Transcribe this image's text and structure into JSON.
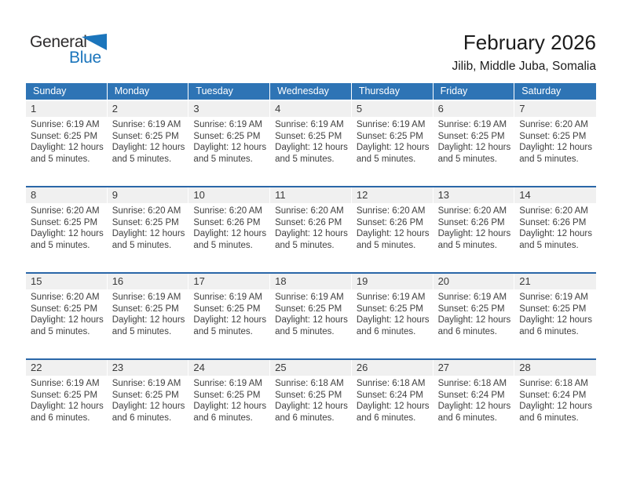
{
  "logo": {
    "part1": "General",
    "part2": "Blue",
    "triangle_icon": "blue-flag-triangle"
  },
  "header": {
    "title": "February 2026",
    "subtitle": "Jilib, Middle Juba, Somalia"
  },
  "colors": {
    "header_blue": "#2E74B5",
    "separator_blue": "#2A67A8",
    "band_gray": "#F0F0F0",
    "logo_blue": "#1B75BC",
    "text_dark": "#404040"
  },
  "calendar": {
    "weekday_headers": [
      "Sunday",
      "Monday",
      "Tuesday",
      "Wednesday",
      "Thursday",
      "Friday",
      "Saturday"
    ],
    "weeks": [
      {
        "days": [
          {
            "day": "1",
            "lines": [
              "Sunrise: 6:19 AM",
              "Sunset: 6:25 PM",
              "Daylight: 12 hours",
              "and 5 minutes."
            ]
          },
          {
            "day": "2",
            "lines": [
              "Sunrise: 6:19 AM",
              "Sunset: 6:25 PM",
              "Daylight: 12 hours",
              "and 5 minutes."
            ]
          },
          {
            "day": "3",
            "lines": [
              "Sunrise: 6:19 AM",
              "Sunset: 6:25 PM",
              "Daylight: 12 hours",
              "and 5 minutes."
            ]
          },
          {
            "day": "4",
            "lines": [
              "Sunrise: 6:19 AM",
              "Sunset: 6:25 PM",
              "Daylight: 12 hours",
              "and 5 minutes."
            ]
          },
          {
            "day": "5",
            "lines": [
              "Sunrise: 6:19 AM",
              "Sunset: 6:25 PM",
              "Daylight: 12 hours",
              "and 5 minutes."
            ]
          },
          {
            "day": "6",
            "lines": [
              "Sunrise: 6:19 AM",
              "Sunset: 6:25 PM",
              "Daylight: 12 hours",
              "and 5 minutes."
            ]
          },
          {
            "day": "7",
            "lines": [
              "Sunrise: 6:20 AM",
              "Sunset: 6:25 PM",
              "Daylight: 12 hours",
              "and 5 minutes."
            ]
          }
        ]
      },
      {
        "days": [
          {
            "day": "8",
            "lines": [
              "Sunrise: 6:20 AM",
              "Sunset: 6:25 PM",
              "Daylight: 12 hours",
              "and 5 minutes."
            ]
          },
          {
            "day": "9",
            "lines": [
              "Sunrise: 6:20 AM",
              "Sunset: 6:25 PM",
              "Daylight: 12 hours",
              "and 5 minutes."
            ]
          },
          {
            "day": "10",
            "lines": [
              "Sunrise: 6:20 AM",
              "Sunset: 6:26 PM",
              "Daylight: 12 hours",
              "and 5 minutes."
            ]
          },
          {
            "day": "11",
            "lines": [
              "Sunrise: 6:20 AM",
              "Sunset: 6:26 PM",
              "Daylight: 12 hours",
              "and 5 minutes."
            ]
          },
          {
            "day": "12",
            "lines": [
              "Sunrise: 6:20 AM",
              "Sunset: 6:26 PM",
              "Daylight: 12 hours",
              "and 5 minutes."
            ]
          },
          {
            "day": "13",
            "lines": [
              "Sunrise: 6:20 AM",
              "Sunset: 6:26 PM",
              "Daylight: 12 hours",
              "and 5 minutes."
            ]
          },
          {
            "day": "14",
            "lines": [
              "Sunrise: 6:20 AM",
              "Sunset: 6:26 PM",
              "Daylight: 12 hours",
              "and 5 minutes."
            ]
          }
        ]
      },
      {
        "days": [
          {
            "day": "15",
            "lines": [
              "Sunrise: 6:20 AM",
              "Sunset: 6:25 PM",
              "Daylight: 12 hours",
              "and 5 minutes."
            ]
          },
          {
            "day": "16",
            "lines": [
              "Sunrise: 6:19 AM",
              "Sunset: 6:25 PM",
              "Daylight: 12 hours",
              "and 5 minutes."
            ]
          },
          {
            "day": "17",
            "lines": [
              "Sunrise: 6:19 AM",
              "Sunset: 6:25 PM",
              "Daylight: 12 hours",
              "and 5 minutes."
            ]
          },
          {
            "day": "18",
            "lines": [
              "Sunrise: 6:19 AM",
              "Sunset: 6:25 PM",
              "Daylight: 12 hours",
              "and 5 minutes."
            ]
          },
          {
            "day": "19",
            "lines": [
              "Sunrise: 6:19 AM",
              "Sunset: 6:25 PM",
              "Daylight: 12 hours",
              "and 6 minutes."
            ]
          },
          {
            "day": "20",
            "lines": [
              "Sunrise: 6:19 AM",
              "Sunset: 6:25 PM",
              "Daylight: 12 hours",
              "and 6 minutes."
            ]
          },
          {
            "day": "21",
            "lines": [
              "Sunrise: 6:19 AM",
              "Sunset: 6:25 PM",
              "Daylight: 12 hours",
              "and 6 minutes."
            ]
          }
        ]
      },
      {
        "days": [
          {
            "day": "22",
            "lines": [
              "Sunrise: 6:19 AM",
              "Sunset: 6:25 PM",
              "Daylight: 12 hours",
              "and 6 minutes."
            ]
          },
          {
            "day": "23",
            "lines": [
              "Sunrise: 6:19 AM",
              "Sunset: 6:25 PM",
              "Daylight: 12 hours",
              "and 6 minutes."
            ]
          },
          {
            "day": "24",
            "lines": [
              "Sunrise: 6:19 AM",
              "Sunset: 6:25 PM",
              "Daylight: 12 hours",
              "and 6 minutes."
            ]
          },
          {
            "day": "25",
            "lines": [
              "Sunrise: 6:18 AM",
              "Sunset: 6:25 PM",
              "Daylight: 12 hours",
              "and 6 minutes."
            ]
          },
          {
            "day": "26",
            "lines": [
              "Sunrise: 6:18 AM",
              "Sunset: 6:24 PM",
              "Daylight: 12 hours",
              "and 6 minutes."
            ]
          },
          {
            "day": "27",
            "lines": [
              "Sunrise: 6:18 AM",
              "Sunset: 6:24 PM",
              "Daylight: 12 hours",
              "and 6 minutes."
            ]
          },
          {
            "day": "28",
            "lines": [
              "Sunrise: 6:18 AM",
              "Sunset: 6:24 PM",
              "Daylight: 12 hours",
              "and 6 minutes."
            ]
          }
        ]
      }
    ]
  }
}
